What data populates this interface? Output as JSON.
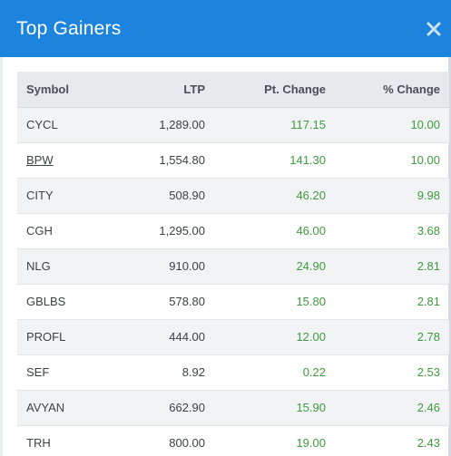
{
  "modal": {
    "title": "Top Gainers"
  },
  "table": {
    "headers": {
      "symbol": "Symbol",
      "ltp": "LTP",
      "pt_change": "Pt. Change",
      "pct_change": "% Change"
    },
    "rows": [
      {
        "symbol": "CYCL",
        "ltp": "1,289.00",
        "pt_change": "117.15",
        "pct_change": "10.00"
      },
      {
        "symbol": "BPW",
        "ltp": "1,554.80",
        "pt_change": "141.30",
        "pct_change": "10.00"
      },
      {
        "symbol": "CITY",
        "ltp": "508.90",
        "pt_change": "46.20",
        "pct_change": "9.98"
      },
      {
        "symbol": "CGH",
        "ltp": "1,295.00",
        "pt_change": "46.00",
        "pct_change": "3.68"
      },
      {
        "symbol": "NLG",
        "ltp": "910.00",
        "pt_change": "24.90",
        "pct_change": "2.81"
      },
      {
        "symbol": "GBLBS",
        "ltp": "578.80",
        "pt_change": "15.80",
        "pct_change": "2.81"
      },
      {
        "symbol": "PROFL",
        "ltp": "444.00",
        "pt_change": "12.00",
        "pct_change": "2.78"
      },
      {
        "symbol": "SEF",
        "ltp": "8.92",
        "pt_change": "0.22",
        "pct_change": "2.53"
      },
      {
        "symbol": "AVYAN",
        "ltp": "662.90",
        "pt_change": "15.90",
        "pct_change": "2.46"
      },
      {
        "symbol": "TRH",
        "ltp": "800.00",
        "pt_change": "19.00",
        "pct_change": "2.43"
      }
    ]
  },
  "colors": {
    "header_bg": "#1d84dd",
    "positive": "#3f9a3f"
  },
  "icons": {
    "close": "close-icon"
  }
}
